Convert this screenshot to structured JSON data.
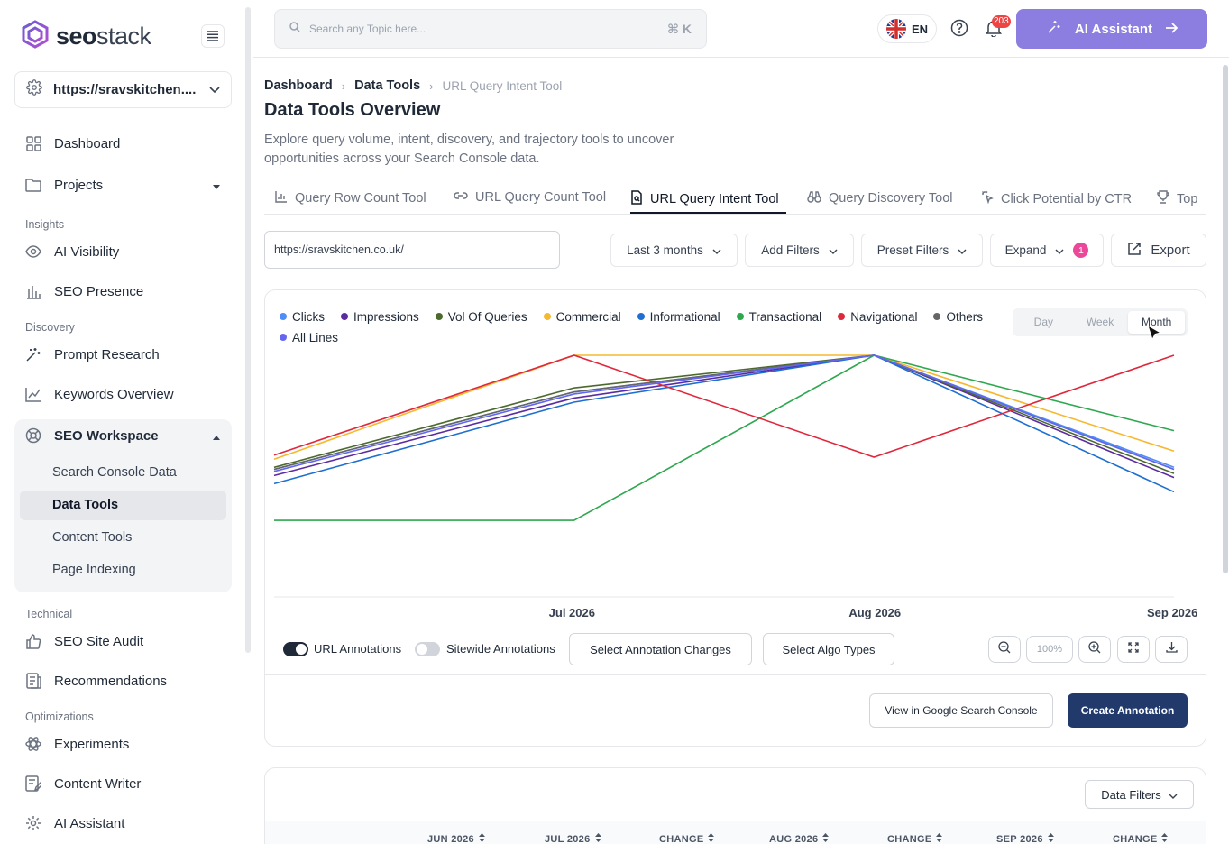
{
  "sidebar": {
    "logo_strong": "seo",
    "logo_light": "stack",
    "site": "https://sravskitchen....",
    "items": {
      "dashboard": "Dashboard",
      "projects": "Projects",
      "ai_visibility": "AI Visibility",
      "seo_presence": "SEO Presence",
      "prompt_research": "Prompt Research",
      "keywords_overview": "Keywords Overview",
      "seo_workspace": "SEO Workspace",
      "search_console_data": "Search Console Data",
      "data_tools": "Data Tools",
      "content_tools": "Content Tools",
      "page_indexing": "Page Indexing",
      "seo_site_audit": "SEO Site Audit",
      "recommendations": "Recommendations",
      "experiments": "Experiments",
      "content_writer": "Content Writer",
      "ai_assistant": "AI Assistant"
    },
    "sections": {
      "insights": "Insights",
      "discovery": "Discovery",
      "technical": "Technical",
      "optimizations": "Optimizations"
    }
  },
  "topbar": {
    "search_placeholder": "Search any Topic here...",
    "shortcut": "⌘ K",
    "language": "EN",
    "notification_count": "203",
    "ai_button": "AI Assistant"
  },
  "breadcrumb": {
    "b1": "Dashboard",
    "b2": "Data Tools",
    "current": "URL Query Intent Tool"
  },
  "page": {
    "title": "Data Tools Overview",
    "description": "Explore query volume, intent, discovery, and trajectory tools to uncover opportunities across your Search Console data."
  },
  "tabs": {
    "t1": "Query Row Count Tool",
    "t2": "URL Query Count Tool",
    "t3": "URL Query Intent Tool",
    "t4": "Query Discovery Tool",
    "t5": "Click Potential by CTR",
    "t6": "Top"
  },
  "filters": {
    "url": "https://sravskitchen.co.uk/",
    "range": "Last 3 months",
    "add_filters": "Add Filters",
    "preset_filters": "Preset Filters",
    "expand": "Expand",
    "expand_count": "1",
    "export": "Export"
  },
  "period": {
    "day": "Day",
    "week": "Week",
    "month": "Month",
    "selected": "Month"
  },
  "chart_data": {
    "type": "line",
    "x": [
      "Jun 2026",
      "Jul 2026",
      "Aug 2026",
      "Sep 2026"
    ],
    "tick_labels": [
      "Jul 2026",
      "Aug 2026",
      "Sep 2026"
    ],
    "normalized": true,
    "ylim": [
      0,
      1
    ],
    "grid": false,
    "legend_position": "top-left",
    "series": [
      {
        "name": "Clicks",
        "color": "#4f8ef7",
        "values": [
          0.44,
          0.82,
          1.0,
          0.45
        ]
      },
      {
        "name": "Impressions",
        "color": "#5b2ca0",
        "values": [
          0.41,
          0.79,
          1.0,
          0.4
        ]
      },
      {
        "name": "Vol Of Queries",
        "color": "#4d6a2e",
        "values": [
          0.45,
          0.84,
          1.0,
          0.42
        ]
      },
      {
        "name": "Commercial",
        "color": "#f5b82e",
        "values": [
          0.49,
          1.0,
          1.0,
          0.53
        ]
      },
      {
        "name": "Informational",
        "color": "#1e6fd0",
        "values": [
          0.37,
          0.77,
          1.0,
          0.33
        ]
      },
      {
        "name": "Transactional",
        "color": "#2ea84f",
        "values": [
          0.19,
          0.19,
          1.0,
          0.63
        ]
      },
      {
        "name": "Navigational",
        "color": "#e0283c",
        "values": [
          0.51,
          1.0,
          0.5,
          1.0
        ]
      },
      {
        "name": "Others",
        "color": "#666666",
        "values": [
          0.44,
          0.82,
          1.0,
          0.44
        ]
      },
      {
        "name": "All Lines",
        "color": "#6366f1",
        "values": [
          0.43,
          0.81,
          1.0,
          0.44
        ]
      }
    ]
  },
  "annotations": {
    "url_label": "URL Annotations",
    "url_on": true,
    "sitewide_label": "Sitewide Annotations",
    "sitewide_on": false,
    "select_changes": "Select Annotation Changes",
    "select_algo": "Select Algo Types",
    "zoom": "100%",
    "view_gsc": "View in Google Search Console",
    "create": "Create Annotation"
  },
  "table": {
    "data_filters": "Data Filters",
    "headers": [
      "JUN 2026",
      "JUL 2026",
      "CHANGE",
      "AUG 2026",
      "CHANGE",
      "SEP 2026",
      "CHANGE"
    ]
  }
}
